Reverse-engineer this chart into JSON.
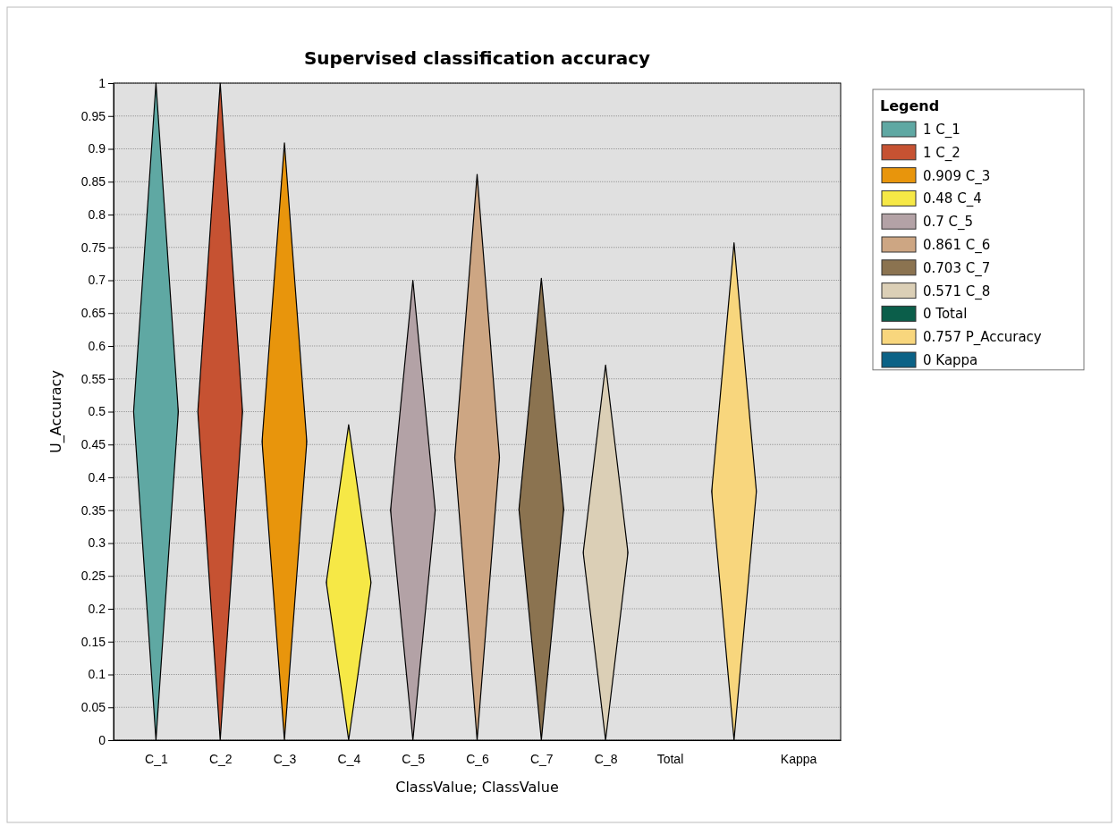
{
  "chart_data": {
    "type": "bar",
    "title": "Supervised classification accuracy",
    "xlabel": "ClassValue; ClassValue",
    "ylabel": "U_Accuracy",
    "legend_title": "Legend",
    "legend": "right",
    "grid": "y",
    "categories": [
      "C_1",
      "C_2",
      "C_3",
      "C_4",
      "C_5",
      "C_6",
      "C_7",
      "C_8",
      "Total",
      null,
      "Kappa"
    ],
    "ylim": [
      0,
      1
    ],
    "yticks": [
      0,
      0.05,
      0.1,
      0.15,
      0.2,
      0.25,
      0.3,
      0.35,
      0.4,
      0.45,
      0.5,
      0.55,
      0.6,
      0.65,
      0.7,
      0.75,
      0.8,
      0.85,
      0.9,
      0.95,
      1
    ],
    "series": [
      {
        "name": "1 C_1",
        "color": "#5fa8a3",
        "values": [
          1,
          null,
          null,
          null,
          null,
          null,
          null,
          null,
          null,
          null,
          null
        ]
      },
      {
        "name": "1 C_2",
        "color": "#c65232",
        "values": [
          null,
          1,
          null,
          null,
          null,
          null,
          null,
          null,
          null,
          null,
          null
        ]
      },
      {
        "name": "0.909 C_3",
        "color": "#e8950c",
        "values": [
          null,
          null,
          0.909,
          null,
          null,
          null,
          null,
          null,
          null,
          null,
          null
        ]
      },
      {
        "name": "0.48 C_4",
        "color": "#f6e846",
        "values": [
          null,
          null,
          null,
          0.48,
          null,
          null,
          null,
          null,
          null,
          null,
          null
        ]
      },
      {
        "name": "0.7 C_5",
        "color": "#b3a2a6",
        "values": [
          null,
          null,
          null,
          null,
          0.7,
          null,
          null,
          null,
          null,
          null,
          null
        ]
      },
      {
        "name": "0.861 C_6",
        "color": "#cda683",
        "values": [
          null,
          null,
          null,
          null,
          null,
          0.861,
          null,
          null,
          null,
          null,
          null
        ]
      },
      {
        "name": "0.703 C_7",
        "color": "#8b7350",
        "values": [
          null,
          null,
          null,
          null,
          null,
          null,
          0.703,
          null,
          null,
          null,
          null
        ]
      },
      {
        "name": "0.571 C_8",
        "color": "#dbcfb6",
        "values": [
          null,
          null,
          null,
          null,
          null,
          null,
          null,
          0.571,
          null,
          null,
          null
        ]
      },
      {
        "name": "0 Total",
        "color": "#0b5e4a",
        "values": [
          null,
          null,
          null,
          null,
          null,
          null,
          null,
          null,
          0,
          null,
          null
        ]
      },
      {
        "name": "0.757 P_Accuracy",
        "color": "#f8d67d",
        "values": [
          null,
          null,
          null,
          null,
          null,
          null,
          null,
          null,
          null,
          0.757,
          null
        ]
      },
      {
        "name": "0 Kappa",
        "color": "#0b6286",
        "values": [
          null,
          null,
          null,
          null,
          null,
          null,
          null,
          null,
          null,
          null,
          0
        ]
      }
    ]
  }
}
